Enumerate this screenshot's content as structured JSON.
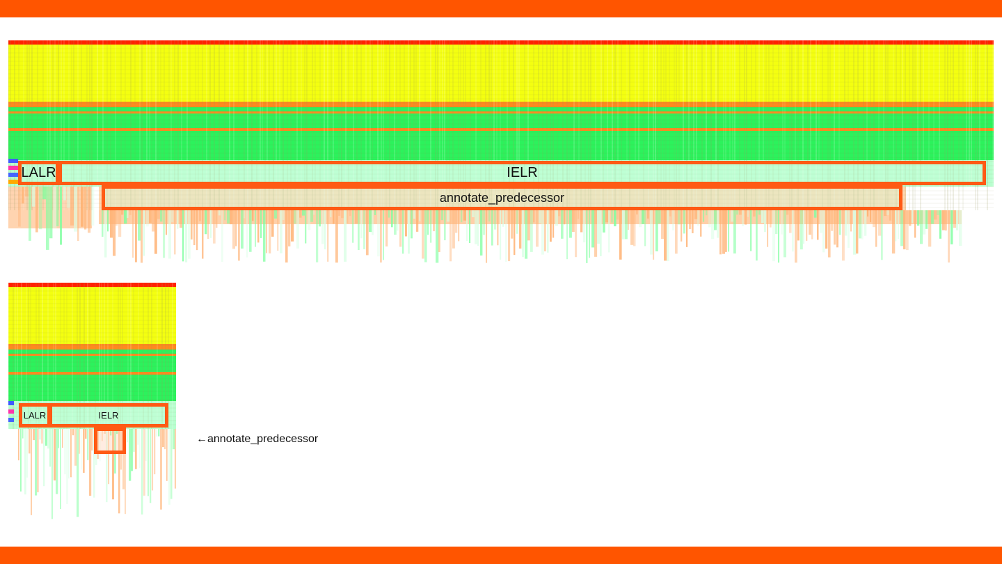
{
  "colors": {
    "accent": "#ff5500",
    "highlight_border": "#ff5a14",
    "flame_red": "#ff2a00",
    "flame_yellow": "#f2ff00",
    "flame_orange": "#ff8a1e",
    "flame_green": "#22f25a",
    "flame_light_green": "#b6ffce"
  },
  "large_graph": {
    "frames": {
      "lalr": "LALR",
      "ielr": "IELR",
      "annotate_predecessor": "annotate_predecessor"
    }
  },
  "small_graph": {
    "frames": {
      "lalr": "LALR",
      "ielr": "IELR"
    }
  },
  "annotation": {
    "text": "←annotate_predecessor"
  }
}
